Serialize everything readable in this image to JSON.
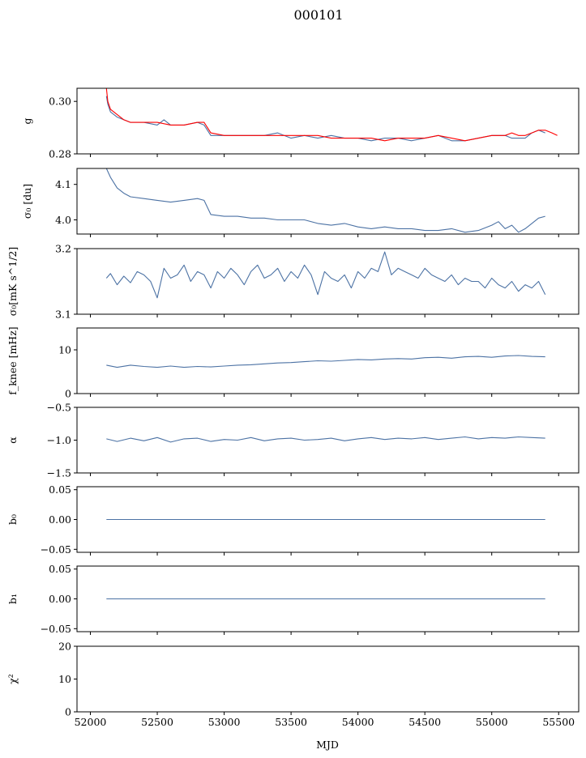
{
  "figure": {
    "title": "000101",
    "xlabel": "MJD"
  },
  "colors": {
    "data": "#4c72a4",
    "model": "#ff0000"
  },
  "chart_data": [
    {
      "type": "line",
      "ylabel": "g",
      "ylim": [
        0.28,
        0.305
      ],
      "yticks": [
        0.28,
        0.3
      ],
      "ytick_labels": [
        "0.28",
        "0.30"
      ],
      "xlim": [
        51900,
        55650
      ],
      "series": [
        {
          "x": [
            52120,
            52130,
            52150,
            52200,
            52250,
            52300,
            52400,
            52500,
            52550,
            52600,
            52700,
            52800,
            52850,
            52900,
            53000,
            53100,
            53200,
            53300,
            53400,
            53500,
            53600,
            53700,
            53800,
            53900,
            54000,
            54100,
            54200,
            54300,
            54400,
            54500,
            54600,
            54700,
            54800,
            54900,
            55000,
            55100,
            55150,
            55200,
            55250,
            55300,
            55350,
            55400
          ],
          "y": [
            0.302,
            0.299,
            0.296,
            0.294,
            0.293,
            0.292,
            0.292,
            0.291,
            0.293,
            0.291,
            0.291,
            0.292,
            0.291,
            0.287,
            0.287,
            0.287,
            0.287,
            0.287,
            0.288,
            0.286,
            0.287,
            0.286,
            0.287,
            0.286,
            0.286,
            0.285,
            0.286,
            0.286,
            0.285,
            0.286,
            0.287,
            0.285,
            0.285,
            0.286,
            0.287,
            0.287,
            0.286,
            0.286,
            0.286,
            0.288,
            0.289,
            0.288
          ]
        },
        {
          "x": [
            52120,
            52130,
            52150,
            52200,
            52250,
            52300,
            52400,
            52500,
            52600,
            52700,
            52800,
            52850,
            52900,
            53000,
            53100,
            53200,
            53300,
            53400,
            53500,
            53600,
            53700,
            53800,
            53900,
            54000,
            54100,
            54200,
            54300,
            54400,
            54500,
            54600,
            54700,
            54800,
            54900,
            55000,
            55100,
            55150,
            55200,
            55250,
            55300,
            55350,
            55400,
            55450,
            55490
          ],
          "y": [
            0.305,
            0.3,
            0.297,
            0.295,
            0.293,
            0.292,
            0.292,
            0.292,
            0.291,
            0.291,
            0.292,
            0.292,
            0.288,
            0.287,
            0.287,
            0.287,
            0.287,
            0.287,
            0.287,
            0.287,
            0.287,
            0.286,
            0.286,
            0.286,
            0.286,
            0.285,
            0.286,
            0.286,
            0.286,
            0.287,
            0.286,
            0.285,
            0.286,
            0.287,
            0.287,
            0.288,
            0.287,
            0.287,
            0.288,
            0.289,
            0.289,
            0.288,
            0.287
          ]
        }
      ]
    },
    {
      "type": "line",
      "ylabel": "σ₀ [du]",
      "ylim": [
        3.96,
        4.145
      ],
      "yticks": [
        4.0,
        4.1
      ],
      "ytick_labels": [
        "4.0",
        "4.1"
      ],
      "xlim": [
        51900,
        55650
      ],
      "series": [
        {
          "x": [
            52120,
            52150,
            52200,
            52250,
            52300,
            52400,
            52500,
            52600,
            52700,
            52800,
            52850,
            52900,
            53000,
            53100,
            53200,
            53300,
            53400,
            53500,
            53600,
            53700,
            53800,
            53900,
            54000,
            54100,
            54200,
            54300,
            54400,
            54500,
            54600,
            54700,
            54800,
            54900,
            55000,
            55050,
            55100,
            55150,
            55200,
            55250,
            55300,
            55350,
            55400
          ],
          "y": [
            4.145,
            4.12,
            4.09,
            4.075,
            4.065,
            4.06,
            4.055,
            4.05,
            4.055,
            4.06,
            4.055,
            4.015,
            4.01,
            4.01,
            4.005,
            4.005,
            4.0,
            4.0,
            4.0,
            3.99,
            3.985,
            3.99,
            3.98,
            3.975,
            3.98,
            3.975,
            3.975,
            3.97,
            3.97,
            3.975,
            3.965,
            3.97,
            3.985,
            3.995,
            3.975,
            3.985,
            3.965,
            3.975,
            3.99,
            4.005,
            4.01
          ]
        }
      ]
    },
    {
      "type": "line",
      "ylabel": "σ₀[mK s^1/2]",
      "ylim": [
        3.1,
        3.2
      ],
      "yticks": [
        3.1,
        3.2
      ],
      "ytick_labels": [
        "3.1",
        "3.2"
      ],
      "xlim": [
        51900,
        55650
      ],
      "series": [
        {
          "x": [
            52120,
            52150,
            52200,
            52250,
            52300,
            52350,
            52400,
            52450,
            52500,
            52550,
            52600,
            52650,
            52700,
            52750,
            52800,
            52850,
            52900,
            52950,
            53000,
            53050,
            53100,
            53150,
            53200,
            53250,
            53300,
            53350,
            53400,
            53450,
            53500,
            53550,
            53600,
            53650,
            53700,
            53750,
            53800,
            53850,
            53900,
            53950,
            54000,
            54050,
            54100,
            54150,
            54200,
            54250,
            54300,
            54350,
            54400,
            54450,
            54500,
            54550,
            54600,
            54650,
            54700,
            54750,
            54800,
            54850,
            54900,
            54950,
            55000,
            55050,
            55100,
            55150,
            55200,
            55250,
            55300,
            55350,
            55400
          ],
          "y": [
            3.155,
            3.162,
            3.145,
            3.158,
            3.148,
            3.165,
            3.16,
            3.15,
            3.125,
            3.17,
            3.155,
            3.16,
            3.175,
            3.15,
            3.165,
            3.16,
            3.14,
            3.165,
            3.155,
            3.17,
            3.16,
            3.145,
            3.165,
            3.175,
            3.155,
            3.16,
            3.17,
            3.15,
            3.165,
            3.155,
            3.175,
            3.16,
            3.13,
            3.165,
            3.155,
            3.15,
            3.16,
            3.14,
            3.165,
            3.155,
            3.17,
            3.165,
            3.195,
            3.16,
            3.17,
            3.165,
            3.16,
            3.155,
            3.17,
            3.16,
            3.155,
            3.15,
            3.16,
            3.145,
            3.155,
            3.15,
            3.15,
            3.14,
            3.155,
            3.145,
            3.14,
            3.15,
            3.135,
            3.145,
            3.14,
            3.15,
            3.13
          ]
        }
      ]
    },
    {
      "type": "line",
      "ylabel": "f_knee [mHz]",
      "ylim": [
        0,
        15
      ],
      "yticks": [
        0,
        10
      ],
      "ytick_labels": [
        "0",
        "10"
      ],
      "xlim": [
        51900,
        55650
      ],
      "series": [
        {
          "x": [
            52120,
            52200,
            52300,
            52400,
            52500,
            52600,
            52700,
            52800,
            52900,
            53000,
            53100,
            53200,
            53300,
            53400,
            53500,
            53600,
            53700,
            53800,
            53900,
            54000,
            54100,
            54200,
            54300,
            54400,
            54500,
            54600,
            54700,
            54800,
            54900,
            55000,
            55100,
            55200,
            55300,
            55400
          ],
          "y": [
            6.5,
            6.0,
            6.5,
            6.2,
            6.0,
            6.3,
            6.0,
            6.2,
            6.1,
            6.3,
            6.5,
            6.6,
            6.8,
            7.0,
            7.1,
            7.3,
            7.5,
            7.4,
            7.6,
            7.8,
            7.7,
            7.9,
            8.0,
            7.9,
            8.2,
            8.3,
            8.1,
            8.4,
            8.5,
            8.3,
            8.6,
            8.7,
            8.5,
            8.4
          ]
        }
      ]
    },
    {
      "type": "line",
      "ylabel": "α",
      "ylim": [
        -1.5,
        -0.5
      ],
      "yticks": [
        -1.5,
        -1.0,
        -0.5
      ],
      "ytick_labels": [
        "−1.5",
        "−1.0",
        "−0.5"
      ],
      "xlim": [
        51900,
        55650
      ],
      "series": [
        {
          "x": [
            52120,
            52200,
            52300,
            52400,
            52500,
            52600,
            52700,
            52800,
            52900,
            53000,
            53100,
            53200,
            53300,
            53400,
            53500,
            53600,
            53700,
            53800,
            53900,
            54000,
            54100,
            54200,
            54300,
            54400,
            54500,
            54600,
            54700,
            54800,
            54900,
            55000,
            55100,
            55200,
            55300,
            55400
          ],
          "y": [
            -0.98,
            -1.02,
            -0.97,
            -1.01,
            -0.96,
            -1.03,
            -0.98,
            -0.97,
            -1.02,
            -0.99,
            -1.0,
            -0.96,
            -1.01,
            -0.98,
            -0.97,
            -1.0,
            -0.99,
            -0.97,
            -1.01,
            -0.98,
            -0.96,
            -0.99,
            -0.97,
            -0.98,
            -0.96,
            -0.99,
            -0.97,
            -0.95,
            -0.98,
            -0.96,
            -0.97,
            -0.95,
            -0.96,
            -0.97
          ]
        }
      ]
    },
    {
      "type": "line",
      "ylabel": "b₀",
      "ylim": [
        -0.055,
        0.055
      ],
      "yticks": [
        -0.05,
        0.0,
        0.05
      ],
      "ytick_labels": [
        "−0.05",
        "0.00",
        "0.05"
      ],
      "xlim": [
        51900,
        55650
      ],
      "series": [
        {
          "x": [
            52120,
            55400
          ],
          "y": [
            0.0,
            0.0
          ]
        }
      ]
    },
    {
      "type": "line",
      "ylabel": "b₁",
      "ylim": [
        -0.055,
        0.055
      ],
      "yticks": [
        -0.05,
        0.0,
        0.05
      ],
      "ytick_labels": [
        "−0.05",
        "0.00",
        "0.05"
      ],
      "xlim": [
        51900,
        55650
      ],
      "series": [
        {
          "x": [
            52120,
            55400
          ],
          "y": [
            0.0,
            0.0
          ]
        }
      ]
    },
    {
      "type": "line",
      "ylabel": "χ²",
      "ylim": [
        0,
        20
      ],
      "yticks": [
        0,
        10,
        20
      ],
      "ytick_labels": [
        "0",
        "10",
        "20"
      ],
      "xlim": [
        51900,
        55650
      ],
      "xticks": [
        52000,
        52500,
        53000,
        53500,
        54000,
        54500,
        55000,
        55500
      ],
      "xtick_labels": [
        "52000",
        "52500",
        "53000",
        "53500",
        "54000",
        "54500",
        "55000",
        "55500"
      ],
      "series": [
        {
          "x": [
            52120,
            55400
          ],
          "y": [
            0.0,
            0.0
          ]
        }
      ]
    }
  ]
}
